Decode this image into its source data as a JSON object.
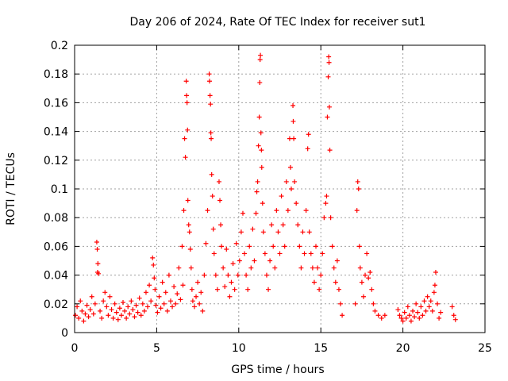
{
  "chart_data": {
    "type": "scatter",
    "title": "Day 206 of 2024, Rate Of TEC Index for receiver sut1",
    "xlabel": "GPS time / hours",
    "ylabel": "ROTI / TECUs",
    "xlim": [
      0,
      25
    ],
    "ylim": [
      0,
      0.2
    ],
    "x_ticks": [
      "0",
      "5",
      "10",
      "15",
      "20",
      "25"
    ],
    "y_ticks": [
      "0",
      "0.02",
      "0.04",
      "0.06",
      "0.08",
      "0.1",
      "0.12",
      "0.14",
      "0.16",
      "0.18",
      "0.2"
    ],
    "grid": true,
    "marker": "+",
    "color": "#ff0000",
    "series": [
      {
        "points": [
          [
            0.05,
            0.012
          ],
          [
            0.15,
            0.018
          ],
          [
            0.25,
            0.01
          ],
          [
            0.35,
            0.022
          ],
          [
            0.45,
            0.015
          ],
          [
            0.55,
            0.008
          ],
          [
            0.65,
            0.013
          ],
          [
            0.75,
            0.019
          ],
          [
            0.85,
            0.011
          ],
          [
            0.95,
            0.016
          ],
          [
            1.05,
            0.025
          ],
          [
            1.15,
            0.013
          ],
          [
            1.25,
            0.02
          ],
          [
            1.35,
            0.063
          ],
          [
            1.38,
            0.058
          ],
          [
            1.42,
            0.048
          ],
          [
            1.4,
            0.042
          ],
          [
            1.45,
            0.041
          ],
          [
            1.55,
            0.015
          ],
          [
            1.65,
            0.01
          ],
          [
            1.75,
            0.022
          ],
          [
            1.85,
            0.028
          ],
          [
            1.95,
            0.018
          ],
          [
            2.05,
            0.012
          ],
          [
            2.15,
            0.025
          ],
          [
            2.25,
            0.016
          ],
          [
            2.35,
            0.01
          ],
          [
            2.45,
            0.02
          ],
          [
            2.55,
            0.014
          ],
          [
            2.65,
            0.009
          ],
          [
            2.75,
            0.017
          ],
          [
            2.85,
            0.012
          ],
          [
            2.95,
            0.021
          ],
          [
            3.05,
            0.015
          ],
          [
            3.15,
            0.01
          ],
          [
            3.25,
            0.018
          ],
          [
            3.35,
            0.013
          ],
          [
            3.45,
            0.022
          ],
          [
            3.55,
            0.016
          ],
          [
            3.65,
            0.011
          ],
          [
            3.75,
            0.019
          ],
          [
            3.85,
            0.014
          ],
          [
            3.95,
            0.024
          ],
          [
            4.05,
            0.012
          ],
          [
            4.15,
            0.02
          ],
          [
            4.25,
            0.015
          ],
          [
            4.35,
            0.028
          ],
          [
            4.45,
            0.018
          ],
          [
            4.55,
            0.033
          ],
          [
            4.65,
            0.022
          ],
          [
            4.75,
            0.052
          ],
          [
            4.8,
            0.047
          ],
          [
            4.85,
            0.038
          ],
          [
            4.9,
            0.03
          ],
          [
            4.95,
            0.019
          ],
          [
            5.05,
            0.014
          ],
          [
            5.15,
            0.025
          ],
          [
            5.25,
            0.017
          ],
          [
            5.35,
            0.035
          ],
          [
            5.45,
            0.02
          ],
          [
            5.55,
            0.028
          ],
          [
            5.65,
            0.015
          ],
          [
            5.75,
            0.04
          ],
          [
            5.85,
            0.022
          ],
          [
            5.95,
            0.018
          ],
          [
            6.05,
            0.032
          ],
          [
            6.15,
            0.02
          ],
          [
            6.25,
            0.027
          ],
          [
            6.35,
            0.045
          ],
          [
            6.45,
            0.023
          ],
          [
            6.55,
            0.06
          ],
          [
            6.6,
            0.033
          ],
          [
            6.65,
            0.085
          ],
          [
            6.7,
            0.135
          ],
          [
            6.75,
            0.122
          ],
          [
            6.8,
            0.175
          ],
          [
            6.82,
            0.165
          ],
          [
            6.85,
            0.16
          ],
          [
            6.88,
            0.141
          ],
          [
            6.9,
            0.092
          ],
          [
            6.95,
            0.075
          ],
          [
            7.0,
            0.07
          ],
          [
            7.05,
            0.058
          ],
          [
            7.1,
            0.045
          ],
          [
            7.15,
            0.03
          ],
          [
            7.2,
            0.022
          ],
          [
            7.3,
            0.018
          ],
          [
            7.4,
            0.025
          ],
          [
            7.5,
            0.035
          ],
          [
            7.6,
            0.02
          ],
          [
            7.7,
            0.028
          ],
          [
            7.8,
            0.015
          ],
          [
            7.9,
            0.04
          ],
          [
            8.0,
            0.062
          ],
          [
            8.1,
            0.085
          ],
          [
            8.2,
            0.18
          ],
          [
            8.22,
            0.175
          ],
          [
            8.25,
            0.165
          ],
          [
            8.28,
            0.159
          ],
          [
            8.3,
            0.139
          ],
          [
            8.32,
            0.135
          ],
          [
            8.35,
            0.11
          ],
          [
            8.4,
            0.095
          ],
          [
            8.45,
            0.072
          ],
          [
            8.5,
            0.055
          ],
          [
            8.6,
            0.04
          ],
          [
            8.7,
            0.03
          ],
          [
            8.8,
            0.105
          ],
          [
            8.85,
            0.092
          ],
          [
            8.9,
            0.075
          ],
          [
            8.95,
            0.06
          ],
          [
            9.05,
            0.045
          ],
          [
            9.15,
            0.032
          ],
          [
            9.25,
            0.058
          ],
          [
            9.35,
            0.04
          ],
          [
            9.45,
            0.025
          ],
          [
            9.55,
            0.035
          ],
          [
            9.65,
            0.048
          ],
          [
            9.75,
            0.03
          ],
          [
            9.85,
            0.062
          ],
          [
            9.95,
            0.04
          ],
          [
            10.05,
            0.05
          ],
          [
            10.15,
            0.07
          ],
          [
            10.25,
            0.083
          ],
          [
            10.35,
            0.055
          ],
          [
            10.45,
            0.04
          ],
          [
            10.55,
            0.03
          ],
          [
            10.65,
            0.06
          ],
          [
            10.75,
            0.045
          ],
          [
            10.85,
            0.072
          ],
          [
            10.95,
            0.05
          ],
          [
            11.05,
            0.083
          ],
          [
            11.1,
            0.098
          ],
          [
            11.15,
            0.105
          ],
          [
            11.2,
            0.13
          ],
          [
            11.25,
            0.15
          ],
          [
            11.28,
            0.174
          ],
          [
            11.3,
            0.19
          ],
          [
            11.32,
            0.193
          ],
          [
            11.35,
            0.139
          ],
          [
            11.38,
            0.127
          ],
          [
            11.4,
            0.115
          ],
          [
            11.45,
            0.09
          ],
          [
            11.5,
            0.07
          ],
          [
            11.6,
            0.055
          ],
          [
            11.7,
            0.04
          ],
          [
            11.8,
            0.03
          ],
          [
            11.9,
            0.05
          ],
          [
            12.0,
            0.075
          ],
          [
            12.1,
            0.06
          ],
          [
            12.2,
            0.045
          ],
          [
            12.3,
            0.085
          ],
          [
            12.4,
            0.07
          ],
          [
            12.5,
            0.055
          ],
          [
            12.6,
            0.095
          ],
          [
            12.7,
            0.075
          ],
          [
            12.8,
            0.06
          ],
          [
            12.9,
            0.105
          ],
          [
            13.0,
            0.085
          ],
          [
            13.1,
            0.135
          ],
          [
            13.15,
            0.115
          ],
          [
            13.2,
            0.1
          ],
          [
            13.3,
            0.158
          ],
          [
            13.32,
            0.147
          ],
          [
            13.35,
            0.135
          ],
          [
            13.4,
            0.105
          ],
          [
            13.5,
            0.09
          ],
          [
            13.6,
            0.075
          ],
          [
            13.7,
            0.06
          ],
          [
            13.8,
            0.045
          ],
          [
            13.9,
            0.07
          ],
          [
            14.0,
            0.055
          ],
          [
            14.1,
            0.085
          ],
          [
            14.2,
            0.128
          ],
          [
            14.25,
            0.138
          ],
          [
            14.3,
            0.07
          ],
          [
            14.4,
            0.055
          ],
          [
            14.5,
            0.045
          ],
          [
            14.6,
            0.035
          ],
          [
            14.7,
            0.06
          ],
          [
            14.8,
            0.045
          ],
          [
            14.9,
            0.03
          ],
          [
            15.0,
            0.04
          ],
          [
            15.1,
            0.055
          ],
          [
            15.2,
            0.08
          ],
          [
            15.3,
            0.09
          ],
          [
            15.35,
            0.095
          ],
          [
            15.4,
            0.15
          ],
          [
            15.45,
            0.178
          ],
          [
            15.48,
            0.192
          ],
          [
            15.5,
            0.188
          ],
          [
            15.52,
            0.157
          ],
          [
            15.55,
            0.127
          ],
          [
            15.6,
            0.08
          ],
          [
            15.7,
            0.06
          ],
          [
            15.8,
            0.045
          ],
          [
            15.9,
            0.035
          ],
          [
            16.0,
            0.05
          ],
          [
            16.1,
            0.03
          ],
          [
            16.2,
            0.02
          ],
          [
            16.3,
            0.012
          ],
          [
            17.1,
            0.02
          ],
          [
            17.2,
            0.085
          ],
          [
            17.25,
            0.105
          ],
          [
            17.3,
            0.1
          ],
          [
            17.35,
            0.06
          ],
          [
            17.4,
            0.045
          ],
          [
            17.5,
            0.035
          ],
          [
            17.6,
            0.025
          ],
          [
            17.7,
            0.04
          ],
          [
            17.8,
            0.055
          ],
          [
            17.9,
            0.038
          ],
          [
            18.0,
            0.042
          ],
          [
            18.1,
            0.03
          ],
          [
            18.2,
            0.02
          ],
          [
            18.3,
            0.015
          ],
          [
            18.5,
            0.012
          ],
          [
            18.7,
            0.01
          ],
          [
            18.9,
            0.012
          ],
          [
            19.7,
            0.016
          ],
          [
            19.8,
            0.012
          ],
          [
            19.9,
            0.01
          ],
          [
            20.0,
            0.008
          ],
          [
            20.1,
            0.014
          ],
          [
            20.2,
            0.01
          ],
          [
            20.3,
            0.018
          ],
          [
            20.4,
            0.012
          ],
          [
            20.5,
            0.008
          ],
          [
            20.6,
            0.015
          ],
          [
            20.7,
            0.011
          ],
          [
            20.8,
            0.02
          ],
          [
            20.9,
            0.014
          ],
          [
            21.0,
            0.01
          ],
          [
            21.1,
            0.018
          ],
          [
            21.2,
            0.012
          ],
          [
            21.3,
            0.022
          ],
          [
            21.4,
            0.015
          ],
          [
            21.5,
            0.025
          ],
          [
            21.6,
            0.018
          ],
          [
            21.7,
            0.022
          ],
          [
            21.8,
            0.015
          ],
          [
            21.9,
            0.028
          ],
          [
            21.95,
            0.033
          ],
          [
            22.0,
            0.042
          ],
          [
            22.1,
            0.02
          ],
          [
            22.2,
            0.01
          ],
          [
            22.3,
            0.014
          ],
          [
            23.0,
            0.018
          ],
          [
            23.1,
            0.012
          ],
          [
            23.2,
            0.009
          ]
        ]
      }
    ]
  }
}
